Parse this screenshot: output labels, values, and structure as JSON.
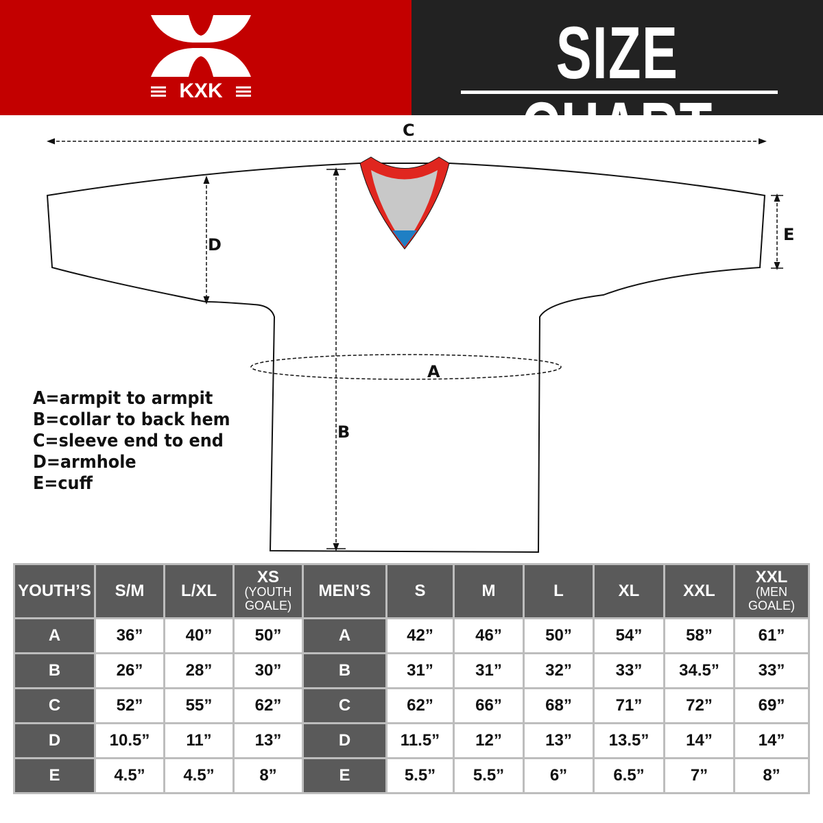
{
  "brand": {
    "logo_text": "KXK",
    "red": "#c30000",
    "dark": "#222222"
  },
  "header": {
    "title": "SIZE CHART"
  },
  "diagram": {
    "labels": {
      "A": "A",
      "B": "B",
      "C": "C",
      "D": "D",
      "E": "E"
    },
    "collar_colors": {
      "trim": "#e0261f",
      "inner": "#c8c8c8",
      "accent": "#1f7fc4"
    }
  },
  "legend": [
    "A=armpit to armpit",
    "B=collar to back hem",
    "C=sleeve end to end",
    "D=armhole",
    "E=cuff"
  ],
  "chart_data": {
    "type": "table",
    "youth": {
      "header": "YOUTH’S",
      "columns": [
        {
          "main": "S/M",
          "sub": ""
        },
        {
          "main": "L/XL",
          "sub": ""
        },
        {
          "main": "XS",
          "sub": "(YOUTH GOALE)"
        }
      ],
      "rows": [
        {
          "label": "A",
          "values": [
            "36”",
            "40”",
            "50”"
          ]
        },
        {
          "label": "B",
          "values": [
            "26”",
            "28”",
            "30”"
          ]
        },
        {
          "label": "C",
          "values": [
            "52”",
            "55”",
            "62”"
          ]
        },
        {
          "label": "D",
          "values": [
            "10.5”",
            "11”",
            "13”"
          ]
        },
        {
          "label": "E",
          "values": [
            "4.5”",
            "4.5”",
            "8”"
          ]
        }
      ]
    },
    "men": {
      "header": "MEN’S",
      "columns": [
        {
          "main": "S",
          "sub": ""
        },
        {
          "main": "M",
          "sub": ""
        },
        {
          "main": "L",
          "sub": ""
        },
        {
          "main": "XL",
          "sub": ""
        },
        {
          "main": "XXL",
          "sub": ""
        },
        {
          "main": "XXL",
          "sub": "(MEN GOALE)"
        }
      ],
      "rows": [
        {
          "label": "A",
          "values": [
            "42”",
            "46”",
            "50”",
            "54”",
            "58”",
            "61”"
          ]
        },
        {
          "label": "B",
          "values": [
            "31”",
            "31”",
            "32”",
            "33”",
            "34.5”",
            "33”"
          ]
        },
        {
          "label": "C",
          "values": [
            "62”",
            "66”",
            "68”",
            "71”",
            "72”",
            "69”"
          ]
        },
        {
          "label": "D",
          "values": [
            "11.5”",
            "12”",
            "13”",
            "13.5”",
            "14”",
            "14”"
          ]
        },
        {
          "label": "E",
          "values": [
            "5.5”",
            "5.5”",
            "6”",
            "6.5”",
            "7”",
            "8”"
          ]
        }
      ]
    }
  }
}
